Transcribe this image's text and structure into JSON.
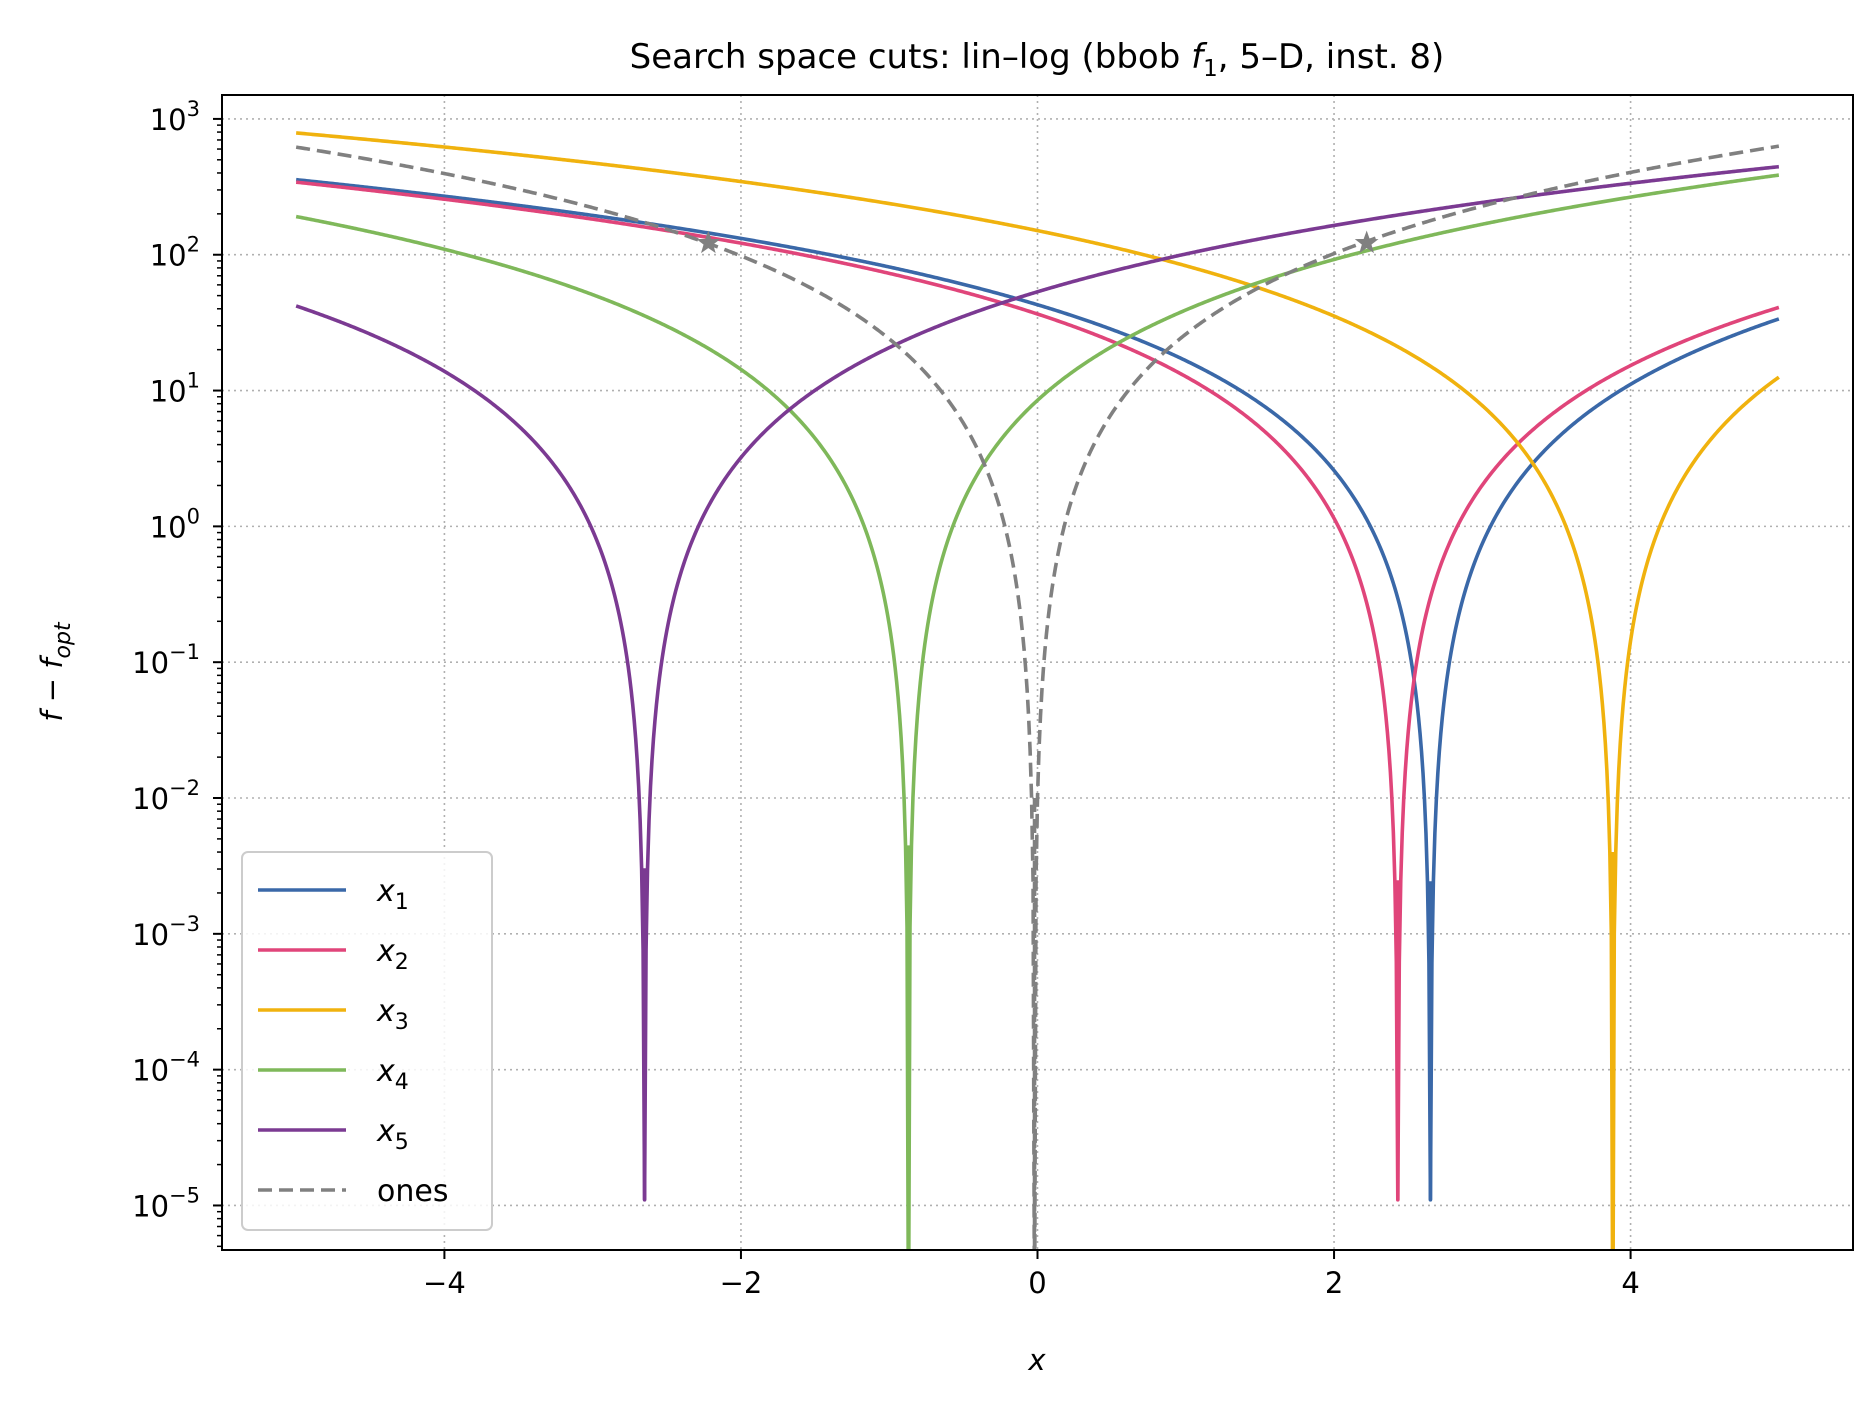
{
  "chart_data": {
    "type": "line",
    "title": "Search space cuts: lin–log (bbob f₁, 5–D, inst. 8)",
    "xlabel": "x",
    "ylabel": "f − f_opt",
    "yscale": "log",
    "xlim": [
      -5.5,
      5.5
    ],
    "ylim": [
      4.7e-06,
      1500
    ],
    "grid": true,
    "legend_position": "lower-left",
    "x_ticks": [
      {
        "value": -4,
        "label": "−4"
      },
      {
        "value": -2,
        "label": "−2"
      },
      {
        "value": 0,
        "label": "0"
      },
      {
        "value": 2,
        "label": "2"
      },
      {
        "value": 4,
        "label": "4"
      }
    ],
    "y_ticks": [
      {
        "value": 1e-05,
        "base": "10",
        "exp": "−5"
      },
      {
        "value": 0.0001,
        "base": "10",
        "exp": "−4"
      },
      {
        "value": 0.001,
        "base": "10",
        "exp": "−3"
      },
      {
        "value": 0.01,
        "base": "10",
        "exp": "−2"
      },
      {
        "value": 0.1,
        "base": "10",
        "exp": "−1"
      },
      {
        "value": 1,
        "base": "10",
        "exp": "0"
      },
      {
        "value": 10,
        "base": "10",
        "exp": "1"
      },
      {
        "value": 100,
        "base": "10",
        "exp": "2"
      },
      {
        "value": 1000,
        "base": "10",
        "exp": "3"
      }
    ],
    "series": [
      {
        "name": "x1",
        "color": "#3a68a8",
        "style": "solid",
        "min_x": 2.65,
        "a": 6.1,
        "x_start": -5,
        "x_end": 5,
        "y_floor": 1.1e-05
      },
      {
        "name": "x2",
        "color": "#e0457a",
        "style": "solid",
        "min_x": 2.43,
        "a": 6.2,
        "x_start": -5,
        "x_end": 5,
        "y_floor": 1.1e-05
      },
      {
        "name": "x3",
        "color": "#f0b20e",
        "style": "solid",
        "min_x": 3.88,
        "a": 10.0,
        "x_start": -5,
        "x_end": 5,
        "y_floor": 1e-06
      },
      {
        "name": "x4",
        "color": "#7fb85a",
        "style": "solid",
        "min_x": -0.87,
        "a": 11.2,
        "x_start": -5,
        "x_end": 5,
        "y_floor": 1e-06
      },
      {
        "name": "x5",
        "color": "#7b3a92",
        "style": "solid",
        "min_x": -2.65,
        "a": 7.6,
        "x_start": -5,
        "x_end": 5,
        "y_floor": 1.1e-05
      },
      {
        "name": "ones",
        "color": "#808080",
        "style": "dashed",
        "min_x": -0.02,
        "a": 25.0,
        "x_start": -5,
        "x_end": 5,
        "y_floor": 1e-06,
        "markers": [
          [
            -2.22,
            122
          ],
          [
            2.22,
            122
          ]
        ]
      }
    ],
    "legend": [
      {
        "name": "x",
        "sub": "1"
      },
      {
        "name": "x",
        "sub": "2"
      },
      {
        "name": "x",
        "sub": "3"
      },
      {
        "name": "x",
        "sub": "4"
      },
      {
        "name": "x",
        "sub": "5"
      },
      {
        "name": "ones",
        "sub": ""
      }
    ]
  }
}
